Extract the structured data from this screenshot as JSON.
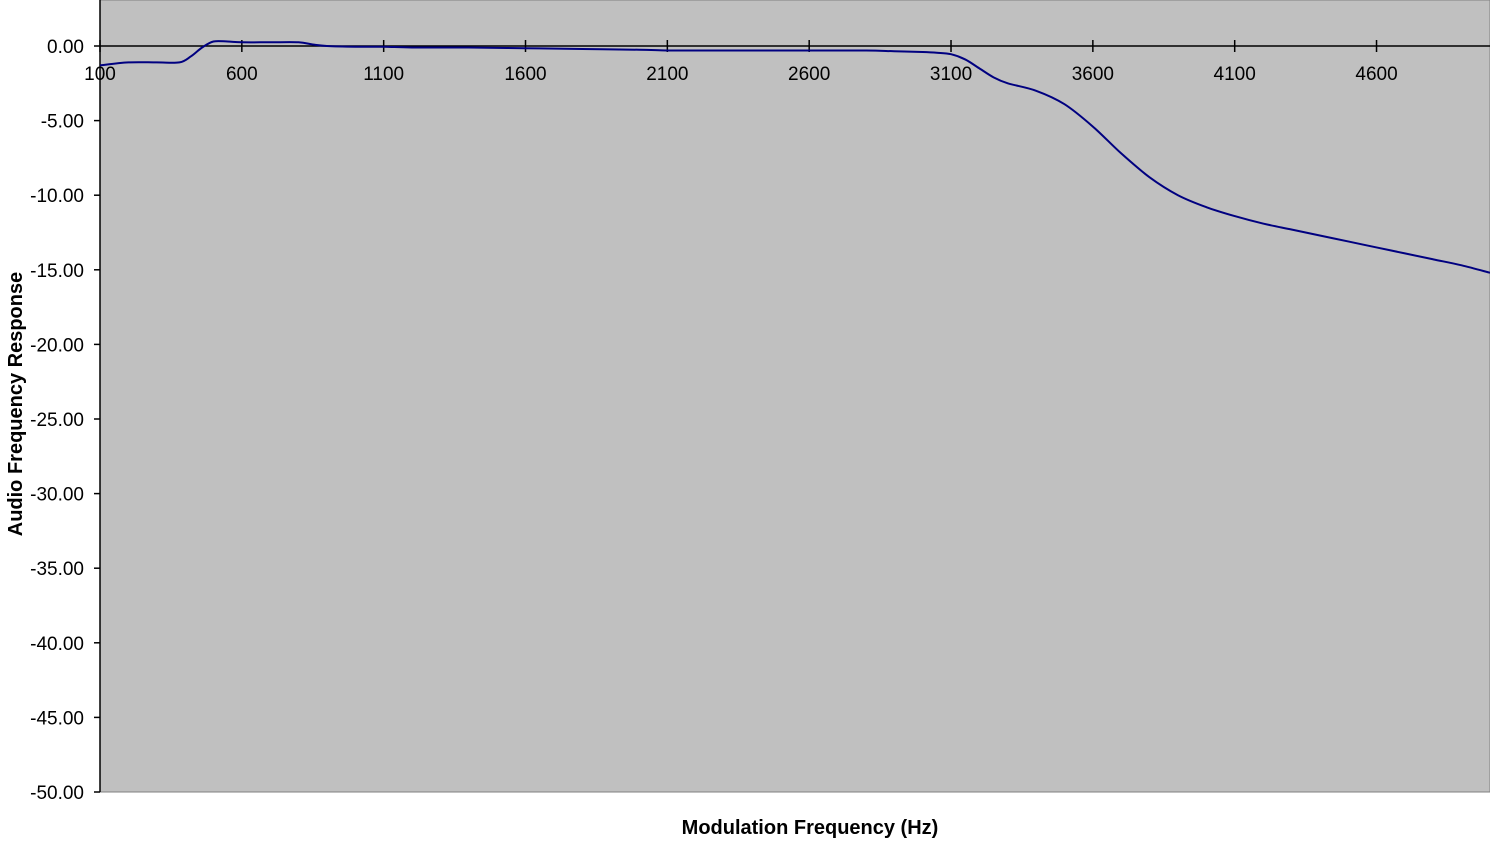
{
  "chart_data": {
    "type": "line",
    "title": "",
    "xlabel": "Modulation Frequency (Hz)",
    "ylabel": "Audio Frequency Response",
    "xlim": [
      100,
      5000
    ],
    "ylim": [
      -50,
      3
    ],
    "x_ticks": [
      100,
      600,
      1100,
      1600,
      2100,
      2600,
      3100,
      3600,
      4100,
      4600
    ],
    "x_tick_labels": [
      "100",
      "600",
      "1100",
      "1600",
      "2100",
      "2600",
      "3100",
      "3600",
      "4100",
      "4600"
    ],
    "y_ticks": [
      0,
      -5,
      -10,
      -15,
      -20,
      -25,
      -30,
      -35,
      -40,
      -45,
      -50
    ],
    "y_tick_labels": [
      "0.00",
      "-5.00",
      "-10.00",
      "-15.00",
      "-20.00",
      "-25.00",
      "-30.00",
      "-35.00",
      "-40.00",
      "-45.00",
      "-50.00"
    ],
    "grid": false,
    "legend": "none",
    "series": [
      {
        "color": "#000080",
        "x": [
          100,
          200,
          300,
          380,
          420,
          460,
          500,
          550,
          600,
          700,
          800,
          850,
          900,
          1000,
          1100,
          1200,
          1400,
          1600,
          1800,
          2000,
          2100,
          2200,
          2400,
          2600,
          2800,
          2900,
          3000,
          3050,
          3100,
          3150,
          3200,
          3250,
          3300,
          3400,
          3500,
          3600,
          3700,
          3800,
          3900,
          4000,
          4100,
          4200,
          4300,
          4400,
          4500,
          4600,
          4700,
          4800,
          4900,
          5000
        ],
        "y": [
          -1.3,
          -1.1,
          -1.1,
          -1.1,
          -0.7,
          -0.1,
          0.3,
          0.3,
          0.25,
          0.25,
          0.25,
          0.1,
          0.0,
          -0.05,
          -0.05,
          -0.1,
          -0.1,
          -0.15,
          -0.2,
          -0.25,
          -0.3,
          -0.3,
          -0.3,
          -0.3,
          -0.3,
          -0.35,
          -0.4,
          -0.45,
          -0.55,
          -0.9,
          -1.5,
          -2.1,
          -2.5,
          -3.0,
          -3.9,
          -5.4,
          -7.2,
          -8.8,
          -10.0,
          -10.8,
          -11.4,
          -11.9,
          -12.3,
          -12.7,
          -13.1,
          -13.5,
          -13.9,
          -14.3,
          -14.7,
          -15.2
        ]
      }
    ]
  }
}
